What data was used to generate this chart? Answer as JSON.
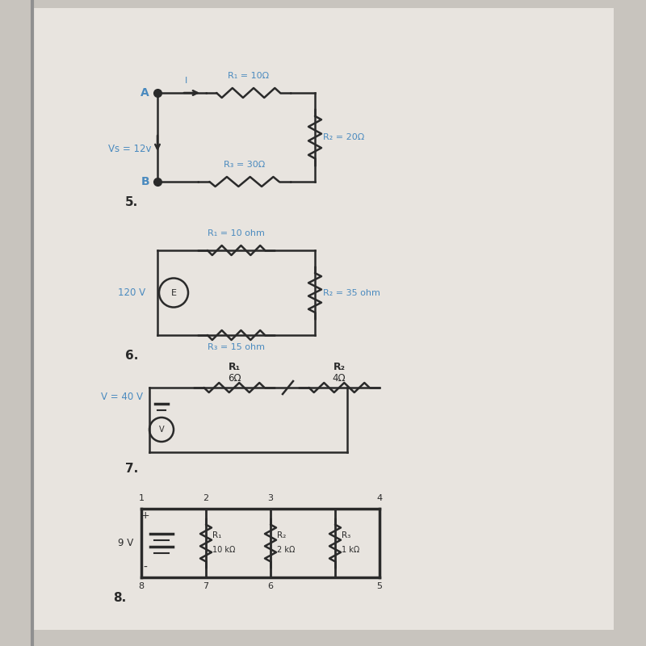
{
  "bg_color": "#c8c4be",
  "page_color": "#e8e4df",
  "line_color": "#2a2a2a",
  "blue_color": "#4a8abf",
  "dark_color": "#1a1a1a",
  "circuit5": {
    "label": "5.",
    "vs_label": "Vs = 12v",
    "r1_label": "R₁ = 10Ω",
    "r2_label": "R₂ = 20Ω",
    "r3_label": "R₃ = 30Ω",
    "node_a": "A",
    "node_b": "B",
    "current_label": "I"
  },
  "circuit6": {
    "label": "6.",
    "vs_label": "120 V",
    "source_node": "E",
    "r1_label": "R₁ = 10 ohm",
    "r2_label": "R₂ = 35 ohm",
    "r3_label": "R₃ = 15 ohm"
  },
  "circuit7": {
    "label": "7.",
    "v_label": "V = 40 V",
    "r1_label": "R₁",
    "r2_label": "R₂",
    "r1_val": "6Ω",
    "r2_val": "4Ω",
    "source_node": "V"
  },
  "circuit8": {
    "label": "8.",
    "vs_label": "9 V",
    "r1_label": "R₁",
    "r2_label": "R₂",
    "r3_label": "R₃",
    "r1_val": "10 kΩ",
    "r2_val": "2 kΩ",
    "r3_val": "1 kΩ",
    "nodes_top": [
      "1",
      "2",
      "3",
      "4"
    ],
    "nodes_bot": [
      "8",
      "7",
      "6",
      "5"
    ]
  }
}
